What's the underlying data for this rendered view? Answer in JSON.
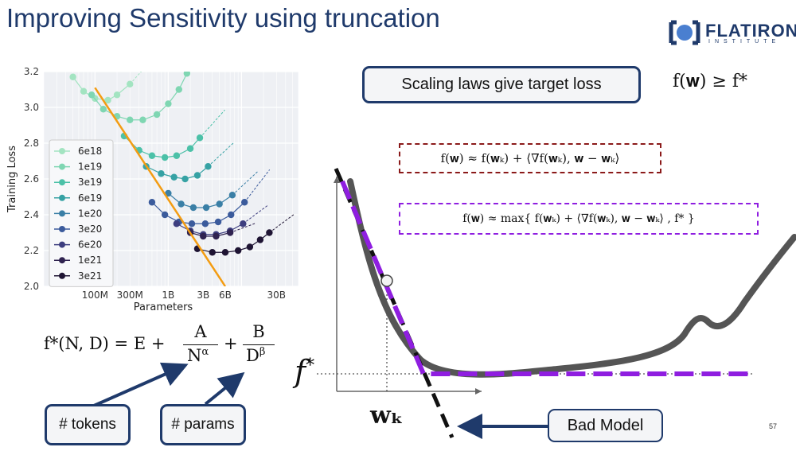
{
  "slide": {
    "title": "Improving Sensitivity using truncation",
    "page_number": "57"
  },
  "logo": {
    "name": "FLATIRON",
    "subtitle": "INSTITUTE",
    "icon": "flatiron-logo-icon",
    "color": "#1f3a6b"
  },
  "callouts": {
    "scaling_laws": "Scaling laws give target loss",
    "tokens": "# tokens",
    "params": "# params",
    "bad_model": "Bad Model"
  },
  "equations": {
    "target": "f(𝐰) ≥ f*",
    "linear": "f(𝐰) ≈ f(𝐰ₖ) + ⟨∇f(𝐰ₖ), 𝐰 − 𝐰ₖ⟩",
    "truncated": "f(𝐰) ≈ max{ f(𝐰ₖ) + ⟨∇f(𝐰ₖ), 𝐰 − 𝐰ₖ⟩ ,  f* }",
    "scaling_lhs": "f*(N, D) = E +",
    "scaling_A": "A",
    "scaling_N": "N",
    "scaling_alpha": "α",
    "scaling_plus": "+",
    "scaling_B": "B",
    "scaling_D": "D",
    "scaling_beta": "β"
  },
  "diagram": {
    "fstar_label": "f*",
    "f_label": "f",
    "fstar_sup": "*",
    "wk_label": "𝐰ₖ",
    "curve_color": "#555555",
    "truncated_color": "#8f1ee0",
    "tangent_color": "#111111"
  },
  "colors": {
    "accent": "#1f3a6b",
    "linear_box_border": "#8b1a1a",
    "truncated_box_border": "#8f1ee0",
    "frontier_line": "#f39c12"
  },
  "chart_data": {
    "type": "line",
    "title": "",
    "xlabel": "Parameters",
    "ylabel": "Training Loss",
    "xscale": "log",
    "xlim": [
      20000000,
      60000000000
    ],
    "ylim": [
      2.0,
      3.2
    ],
    "xticks": [
      {
        "v": 100000000,
        "label": "100M"
      },
      {
        "v": 300000000,
        "label": "300M"
      },
      {
        "v": 1000000000,
        "label": "1B"
      },
      {
        "v": 3000000000,
        "label": "3B"
      },
      {
        "v": 6000000000,
        "label": "6B"
      },
      {
        "v": 30000000000,
        "label": "30B"
      }
    ],
    "yticks": [
      2.0,
      2.2,
      2.4,
      2.6,
      2.8,
      3.0,
      3.2
    ],
    "legend_position": "left",
    "series": [
      {
        "name": "6e18",
        "color": "#a3e4c1",
        "x": [
          50000000,
          70000000,
          100000000,
          150000000,
          200000000,
          300000000
        ],
        "y": [
          3.17,
          3.09,
          3.05,
          3.04,
          3.07,
          3.13
        ]
      },
      {
        "name": "1e19",
        "color": "#7fd6b2",
        "x": [
          90000000,
          130000000,
          200000000,
          300000000,
          450000000,
          700000000,
          1000000000,
          1400000000,
          1800000000
        ],
        "y": [
          3.07,
          2.99,
          2.95,
          2.93,
          2.93,
          2.96,
          3.02,
          3.1,
          3.19
        ]
      },
      {
        "name": "3e19",
        "color": "#4cc1a8",
        "x": [
          250000000,
          400000000,
          600000000,
          900000000,
          1300000000,
          2000000000,
          2700000000
        ],
        "y": [
          2.84,
          2.76,
          2.73,
          2.72,
          2.73,
          2.77,
          2.83
        ]
      },
      {
        "name": "6e19",
        "color": "#36a2a4",
        "x": [
          500000000,
          800000000,
          1200000000,
          1700000000,
          2500000000,
          3500000000
        ],
        "y": [
          2.67,
          2.63,
          2.61,
          2.6,
          2.62,
          2.67
        ]
      },
      {
        "name": "1e20",
        "color": "#3a7fa6",
        "x": [
          1000000000,
          1500000000,
          2200000000,
          3300000000,
          5000000000,
          7500000000
        ],
        "y": [
          2.52,
          2.46,
          2.44,
          2.44,
          2.46,
          2.51
        ]
      },
      {
        "name": "3e20",
        "color": "#3b5b9c",
        "x": [
          600000000,
          900000000,
          1400000000,
          2100000000,
          3200000000,
          4800000000,
          7200000000,
          11000000000
        ],
        "y": [
          2.47,
          2.4,
          2.36,
          2.35,
          2.35,
          2.36,
          2.4,
          2.47
        ]
      },
      {
        "name": "6e20",
        "color": "#3d3e7f",
        "x": [
          1300000000,
          2000000000,
          3000000000,
          4500000000,
          7000000000,
          10500000000
        ],
        "y": [
          2.35,
          2.31,
          2.29,
          2.29,
          2.31,
          2.35
        ]
      },
      {
        "name": "1e21",
        "color": "#2f2350",
        "x": [
          2000000000,
          3000000000,
          4500000000,
          7000000000
        ],
        "y": [
          2.3,
          2.28,
          2.28,
          2.3
        ]
      },
      {
        "name": "3e21",
        "color": "#1e1433",
        "x": [
          2500000000,
          4000000000,
          6000000000,
          9000000000,
          13000000000,
          18000000000,
          24000000000
        ],
        "y": [
          2.21,
          2.19,
          2.19,
          2.2,
          2.22,
          2.26,
          2.3
        ]
      }
    ],
    "frontier": {
      "color": "#f39c12",
      "x": [
        100000000,
        6000000000
      ],
      "y": [
        3.11,
        2.0
      ]
    }
  }
}
